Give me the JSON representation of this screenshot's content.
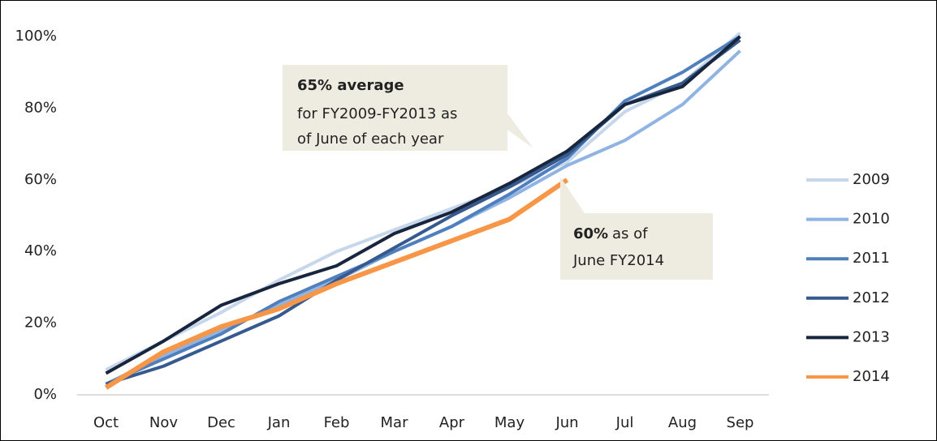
{
  "chart_data": {
    "type": "line",
    "categories": [
      "Oct",
      "Nov",
      "Dec",
      "Jan",
      "Feb",
      "Mar",
      "Apr",
      "May",
      "Jun",
      "Jul",
      "Aug",
      "Sep"
    ],
    "series": [
      {
        "name": "2009",
        "color": "#c6d6eb",
        "values": [
          7,
          15,
          23,
          32,
          40,
          46,
          52,
          58,
          65,
          79,
          87,
          101
        ]
      },
      {
        "name": "2010",
        "color": "#8fb3e2",
        "values": [
          3,
          11,
          18,
          25,
          32,
          40,
          47,
          55,
          64,
          71,
          81,
          96
        ]
      },
      {
        "name": "2011",
        "color": "#4f7fbc",
        "values": [
          3,
          10,
          17,
          26,
          33,
          40,
          47,
          56,
          66,
          82,
          90,
          100
        ]
      },
      {
        "name": "2012",
        "color": "#365a8f",
        "values": [
          3,
          8,
          15,
          22,
          32,
          41,
          50,
          58,
          67,
          81,
          87,
          99
        ]
      },
      {
        "name": "2013",
        "color": "#17253d",
        "values": [
          6,
          15,
          25,
          31,
          36,
          45,
          51,
          59,
          68,
          81,
          86,
          100
        ]
      },
      {
        "name": "2014",
        "color": "#f79646",
        "values": [
          2,
          12,
          19,
          24,
          31,
          37,
          43,
          49,
          60,
          null,
          null,
          null
        ]
      }
    ],
    "ylim": [
      0,
      100
    ],
    "yticks": [
      {
        "value": 0,
        "label": "0%"
      },
      {
        "value": 20,
        "label": "20%"
      },
      {
        "value": 40,
        "label": "40%"
      },
      {
        "value": 60,
        "label": "60%"
      },
      {
        "value": 80,
        "label": "80%"
      },
      {
        "value": 100,
        "label": "100%"
      }
    ],
    "legend": "right",
    "annotations": [
      {
        "bold": "65% average",
        "lines": [
          "for FY2009-FY2013 as",
          "of June of each year"
        ]
      },
      {
        "bold": "60%",
        "text": "as of",
        "lines": [
          "June FY2014"
        ]
      }
    ]
  }
}
